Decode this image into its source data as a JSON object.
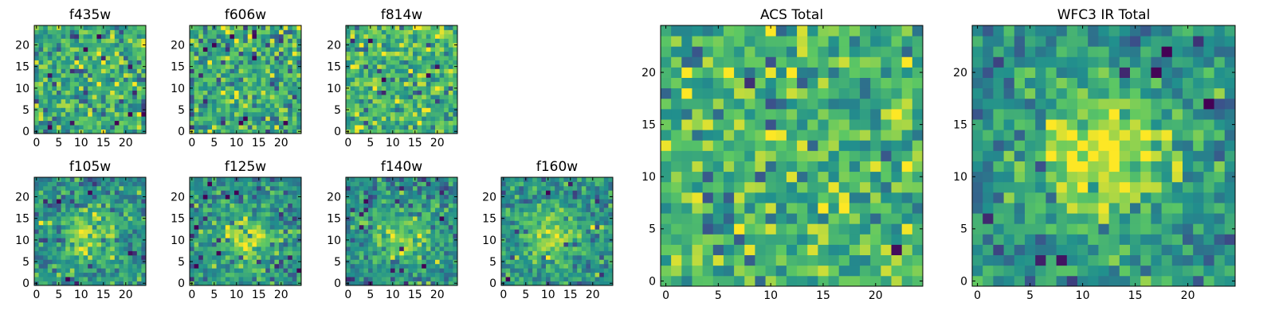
{
  "figure": {
    "name": "HST cutout panels"
  },
  "colormap": {
    "name": "viridis",
    "stops": [
      "#440154",
      "#3b528b",
      "#21908d",
      "#5dc863",
      "#fde725"
    ]
  },
  "chart_data": [
    {
      "type": "heatmap",
      "title": "f435w",
      "xlim": [
        -0.5,
        24.5
      ],
      "ylim": [
        -0.5,
        24.5
      ],
      "xticks": [
        0,
        5,
        10,
        15,
        20
      ],
      "yticks": [
        0,
        5,
        10,
        15,
        20
      ],
      "grid_size": 25,
      "pattern": "noise",
      "seed": 11,
      "amplitude": 0.0
    },
    {
      "type": "heatmap",
      "title": "f606w",
      "xlim": [
        -0.5,
        24.5
      ],
      "ylim": [
        -0.5,
        24.5
      ],
      "xticks": [
        0,
        5,
        10,
        15,
        20
      ],
      "yticks": [
        0,
        5,
        10,
        15,
        20
      ],
      "grid_size": 25,
      "pattern": "noise",
      "seed": 23,
      "amplitude": 0.0
    },
    {
      "type": "heatmap",
      "title": "f814w",
      "xlim": [
        -0.5,
        24.5
      ],
      "ylim": [
        -0.5,
        24.5
      ],
      "xticks": [
        0,
        5,
        10,
        15,
        20
      ],
      "yticks": [
        0,
        5,
        10,
        15,
        20
      ],
      "grid_size": 25,
      "pattern": "noise",
      "seed": 37,
      "amplitude": 0.05
    },
    {
      "type": "heatmap",
      "title": "f105w",
      "xlim": [
        -0.5,
        24.5
      ],
      "ylim": [
        -0.5,
        24.5
      ],
      "xticks": [
        0,
        5,
        10,
        15,
        20
      ],
      "yticks": [
        0,
        5,
        10,
        15,
        20
      ],
      "grid_size": 25,
      "pattern": "source",
      "seed": 41,
      "amplitude": 0.35,
      "center": [
        12,
        11
      ]
    },
    {
      "type": "heatmap",
      "title": "f125w",
      "xlim": [
        -0.5,
        24.5
      ],
      "ylim": [
        -0.5,
        24.5
      ],
      "xticks": [
        0,
        5,
        10,
        15,
        20
      ],
      "yticks": [
        0,
        5,
        10,
        15,
        20
      ],
      "grid_size": 25,
      "pattern": "source",
      "seed": 53,
      "amplitude": 0.35,
      "center": [
        12,
        11
      ]
    },
    {
      "type": "heatmap",
      "title": "f140w",
      "xlim": [
        -0.5,
        24.5
      ],
      "ylim": [
        -0.5,
        24.5
      ],
      "xticks": [
        0,
        5,
        10,
        15,
        20
      ],
      "yticks": [
        0,
        5,
        10,
        15,
        20
      ],
      "grid_size": 25,
      "pattern": "source",
      "seed": 67,
      "amplitude": 0.3,
      "center": [
        12,
        11
      ]
    },
    {
      "type": "heatmap",
      "title": "f160w",
      "xlim": [
        -0.5,
        24.5
      ],
      "ylim": [
        -0.5,
        24.5
      ],
      "xticks": [
        0,
        5,
        10,
        15,
        20
      ],
      "yticks": [
        0,
        5,
        10,
        15,
        20
      ],
      "grid_size": 25,
      "pattern": "source",
      "seed": 79,
      "amplitude": 0.35,
      "center": [
        11,
        11
      ]
    },
    {
      "type": "heatmap",
      "title": "ACS Total",
      "xlim": [
        -0.5,
        24.5
      ],
      "ylim": [
        -0.5,
        24.5
      ],
      "xticks": [
        0,
        5,
        10,
        15,
        20
      ],
      "yticks": [
        0,
        5,
        10,
        15,
        20
      ],
      "grid_size": 25,
      "pattern": "noise",
      "seed": 97,
      "amplitude": 0.05
    },
    {
      "type": "heatmap",
      "title": "WFC3 IR Total",
      "xlim": [
        -0.5,
        24.5
      ],
      "ylim": [
        -0.5,
        24.5
      ],
      "xticks": [
        0,
        5,
        10,
        15,
        20
      ],
      "yticks": [
        0,
        5,
        10,
        15,
        20
      ],
      "grid_size": 25,
      "pattern": "source",
      "seed": 131,
      "amplitude": 0.5,
      "center": [
        12,
        12
      ]
    }
  ]
}
